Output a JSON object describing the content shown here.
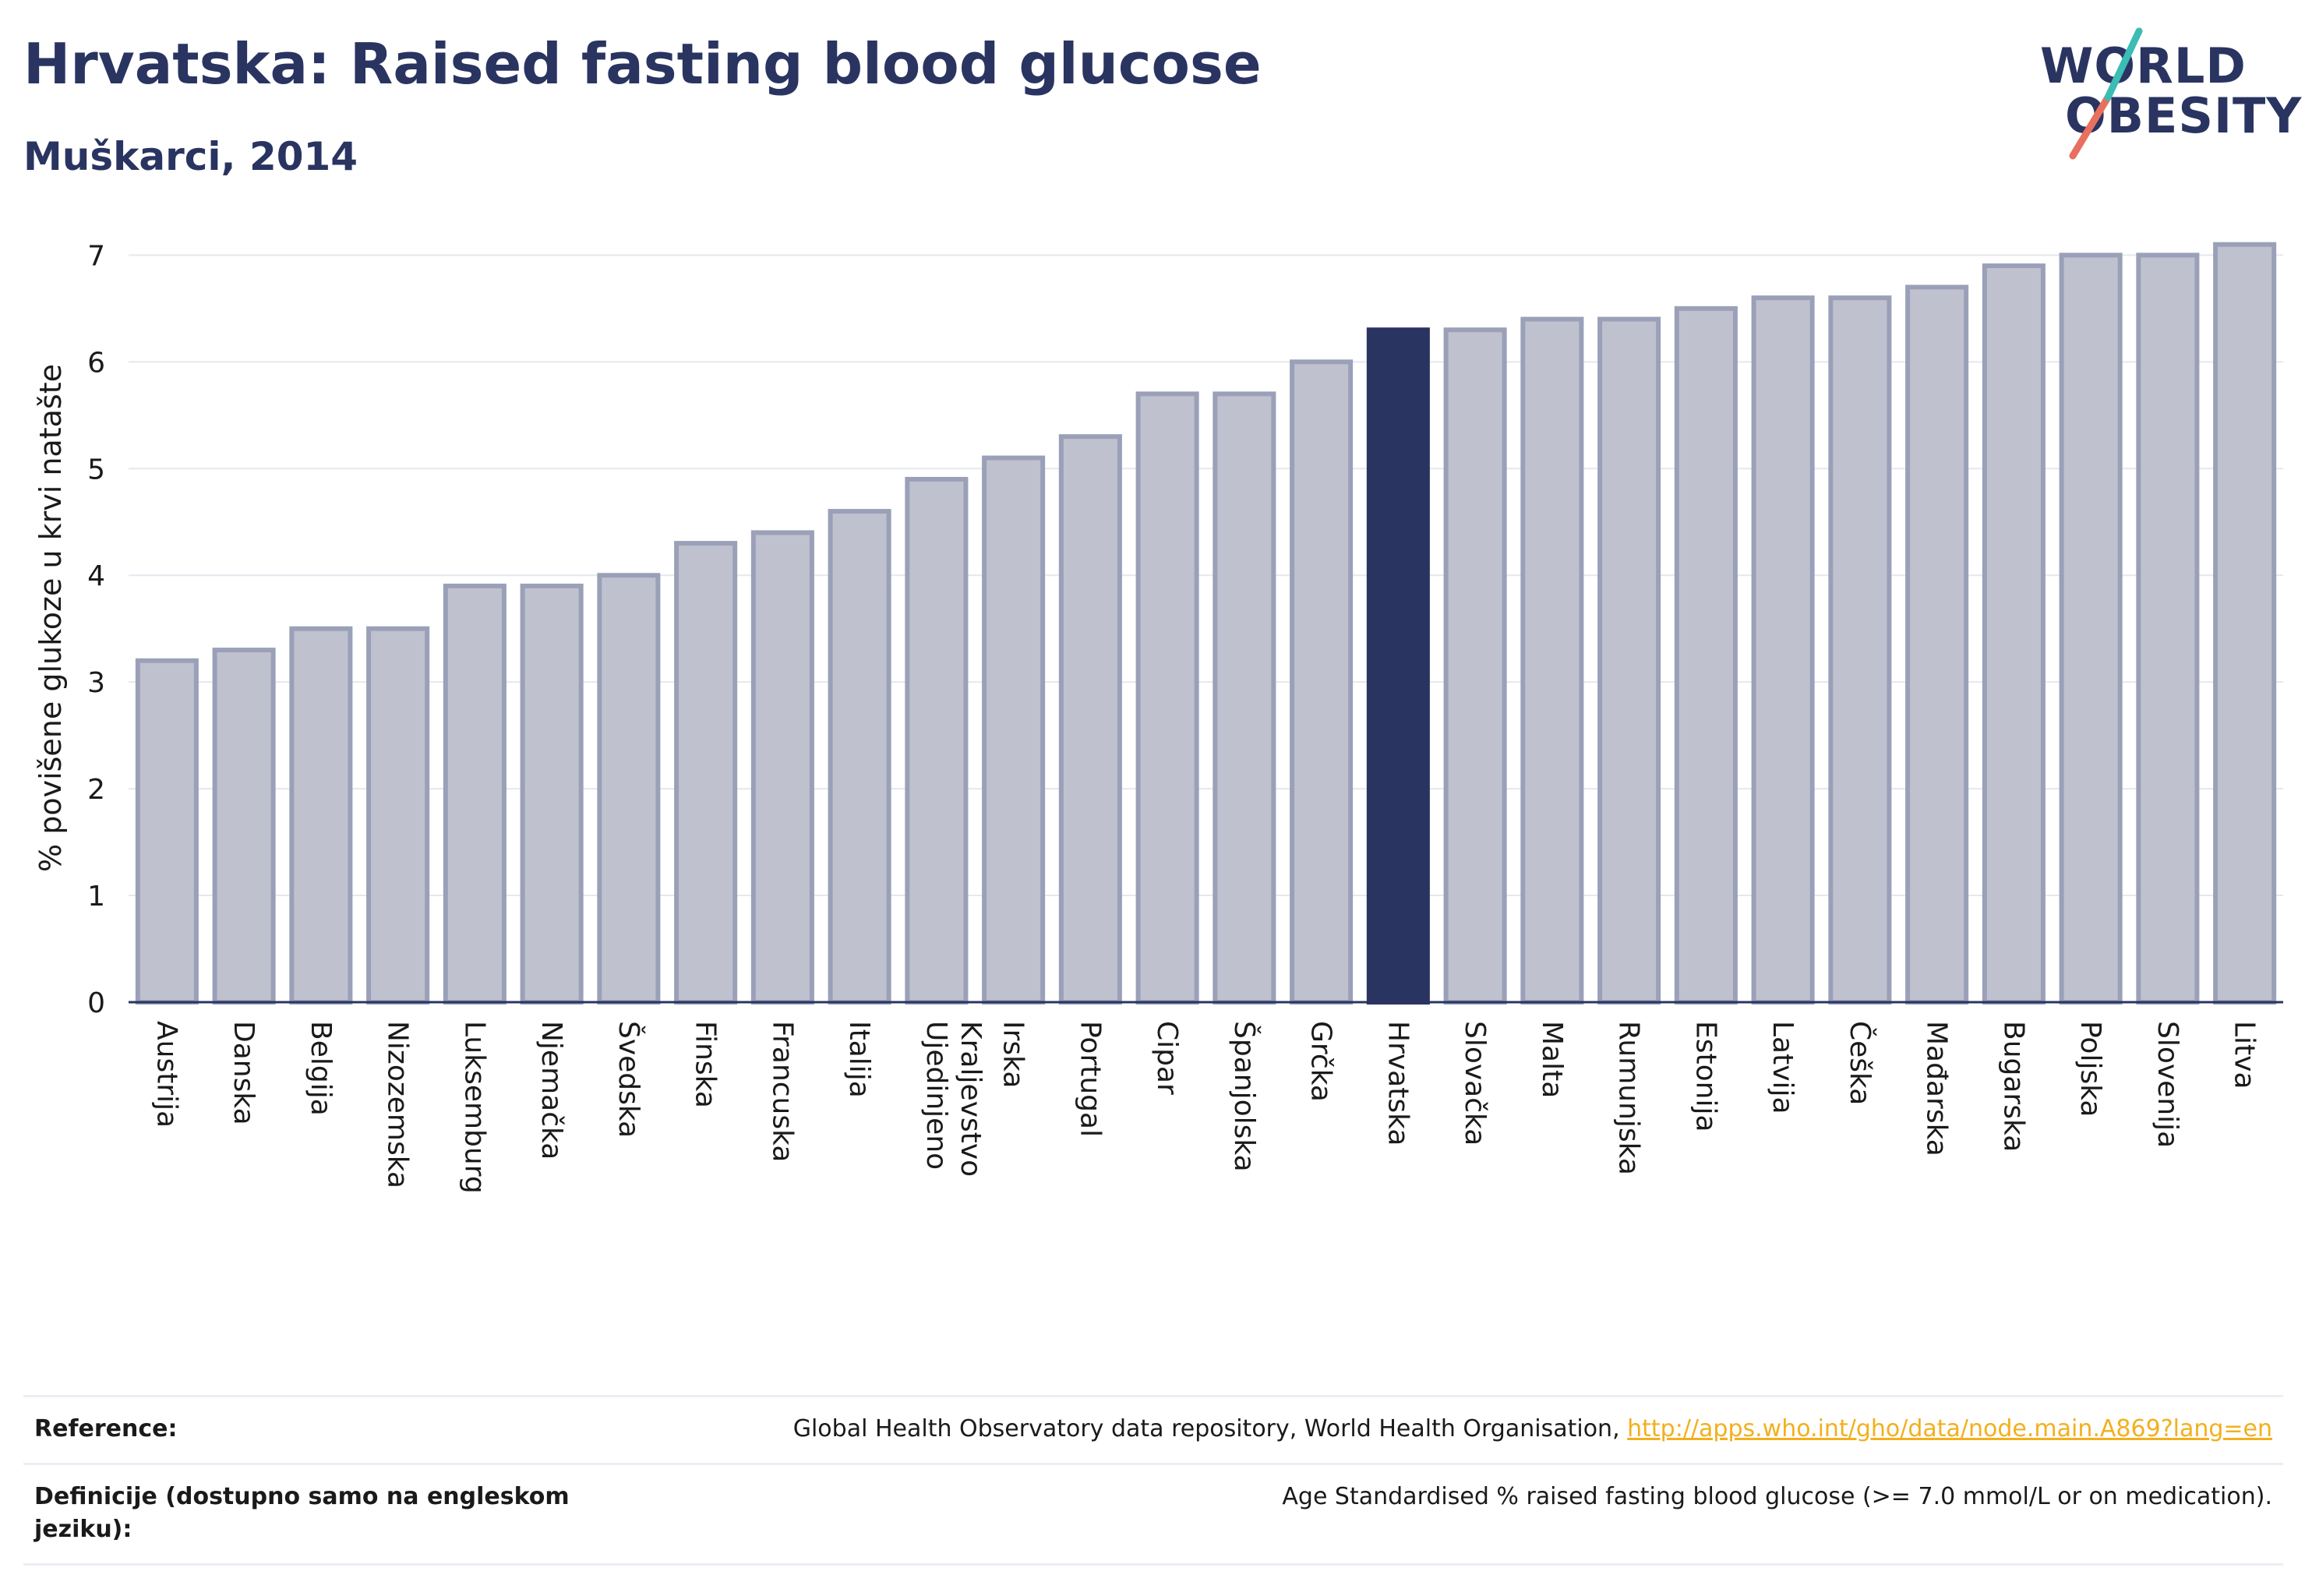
{
  "header": {
    "title": "Hrvatska: Raised fasting blood glucose",
    "subtitle": "Muškarci, 2014"
  },
  "logo": {
    "line1": "WORLD",
    "line2": "OBESITY"
  },
  "colors": {
    "highlight": "#2a3461",
    "bar_fill": "#bfc2ce",
    "bar_stroke": "#9aa0b8",
    "grid": "#e6e8ef",
    "logo_slash_teal": "#3bbcb4",
    "logo_slash_coral": "#e8705e",
    "link": "#f2b01e"
  },
  "chart_data": {
    "type": "bar",
    "title": "Hrvatska: Raised fasting blood glucose",
    "subtitle": "Muškarci, 2014",
    "ylabel": "% povišene glukoze u krvi natašte",
    "xlabel": "",
    "ylim": [
      0,
      7.2
    ],
    "yticks": [
      0,
      1,
      2,
      3,
      4,
      5,
      6,
      7
    ],
    "grid": true,
    "highlight": "Hrvatska",
    "categories": [
      "Austrija",
      "Danska",
      "Belgija",
      "Nizozemska",
      "Luksemburg",
      "Njemačka",
      "Švedska",
      "Finska",
      "Francuska",
      "Italija",
      "Ujedinjeno Kraljevstvo",
      "Irska",
      "Portugal",
      "Cipar",
      "Španjolska",
      "Grčka",
      "Hrvatska",
      "Slovačka",
      "Malta",
      "Rumunjska",
      "Estonija",
      "Latvija",
      "Češka",
      "Mađarska",
      "Bugarska",
      "Poljska",
      "Slovenija",
      "Litva"
    ],
    "values": [
      3.2,
      3.3,
      3.5,
      3.5,
      3.9,
      3.9,
      4.0,
      4.3,
      4.4,
      4.6,
      4.9,
      5.1,
      5.3,
      5.7,
      5.7,
      6.0,
      6.3,
      6.3,
      6.4,
      6.4,
      6.5,
      6.6,
      6.6,
      6.7,
      6.9,
      7.0,
      7.0,
      7.1
    ]
  },
  "footer": {
    "reference_label": "Reference:",
    "reference_text": "Global Health Observatory data repository, World Health Organisation, ",
    "reference_link": "http://apps.who.int/gho/data/node.main.A869?lang=en",
    "definition_label": "Definicije (dostupno samo na engleskom jeziku):",
    "definition_text": "Age Standardised % raised fasting blood glucose (>= 7.0 mmol/L or on medication)."
  }
}
